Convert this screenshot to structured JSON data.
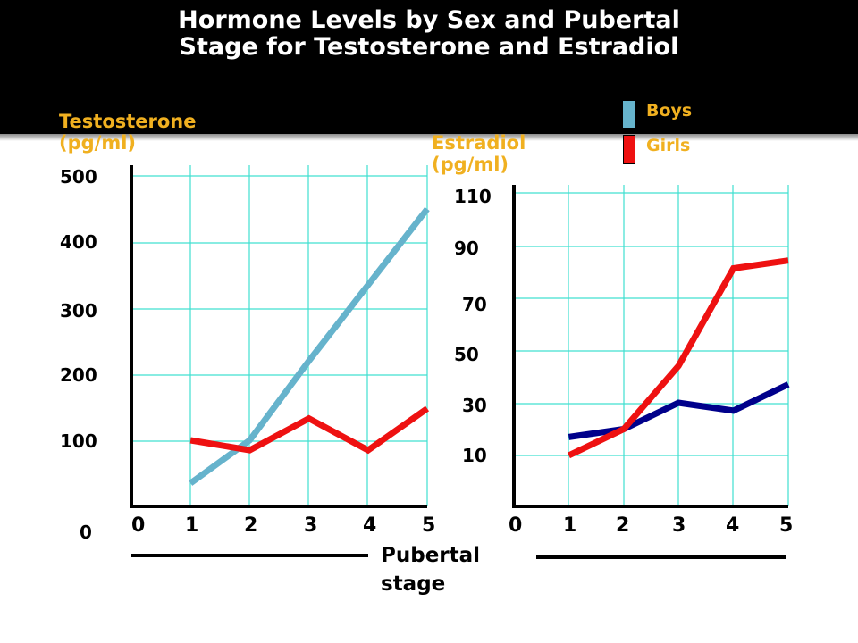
{
  "title": "Hormone Levels by Sex and Pubertal Stage for Testosterone and Estradiol",
  "colors": {
    "boys": "#66b3cc",
    "girls": "#ee1111",
    "boys_estradiol": "#00008b",
    "label": "#f0b020",
    "grid": "#40e0d0"
  },
  "legend": [
    {
      "label": "Boys",
      "color": "#66b3cc"
    },
    {
      "label": "Girls",
      "color": "#ee1111"
    }
  ],
  "xlabel": "Pubertal stage",
  "chart_data": [
    {
      "type": "line",
      "title": "",
      "xlabel": "Pubertal stage",
      "ylabel": "Testosterone (pg/ml)",
      "x_ticks": [
        "0",
        "1",
        "2",
        "3",
        "4",
        "5"
      ],
      "y_ticks": [
        "500",
        "400",
        "300",
        "200",
        "100",
        "0"
      ],
      "xlim": [
        0,
        5
      ],
      "ylim": [
        0,
        500
      ],
      "grid": true,
      "series": [
        {
          "name": "Boys",
          "x": [
            1,
            2,
            3,
            4,
            5
          ],
          "y": [
            35,
            100,
            220,
            335,
            450
          ]
        },
        {
          "name": "Girls",
          "x": [
            1,
            2,
            3,
            4,
            5
          ],
          "y": [
            100,
            85,
            133,
            85,
            148
          ]
        }
      ]
    },
    {
      "type": "line",
      "title": "",
      "xlabel": "Pubertal stage",
      "ylabel": "Estradiol (pg/ml)",
      "x_ticks": [
        "0",
        "1",
        "2",
        "3",
        "4",
        "5"
      ],
      "y_ticks": [
        "110",
        "90",
        "70",
        "50",
        "30",
        "10"
      ],
      "xlim": [
        0,
        5
      ],
      "ylim": [
        0,
        110
      ],
      "grid": true,
      "series": [
        {
          "name": "Boys",
          "x": [
            1,
            2,
            3,
            4,
            5
          ],
          "y": [
            17,
            20,
            30,
            27,
            37
          ]
        },
        {
          "name": "Girls",
          "x": [
            1,
            2,
            3,
            4,
            5
          ],
          "y": [
            10,
            20,
            44,
            81,
            84
          ]
        }
      ]
    }
  ]
}
